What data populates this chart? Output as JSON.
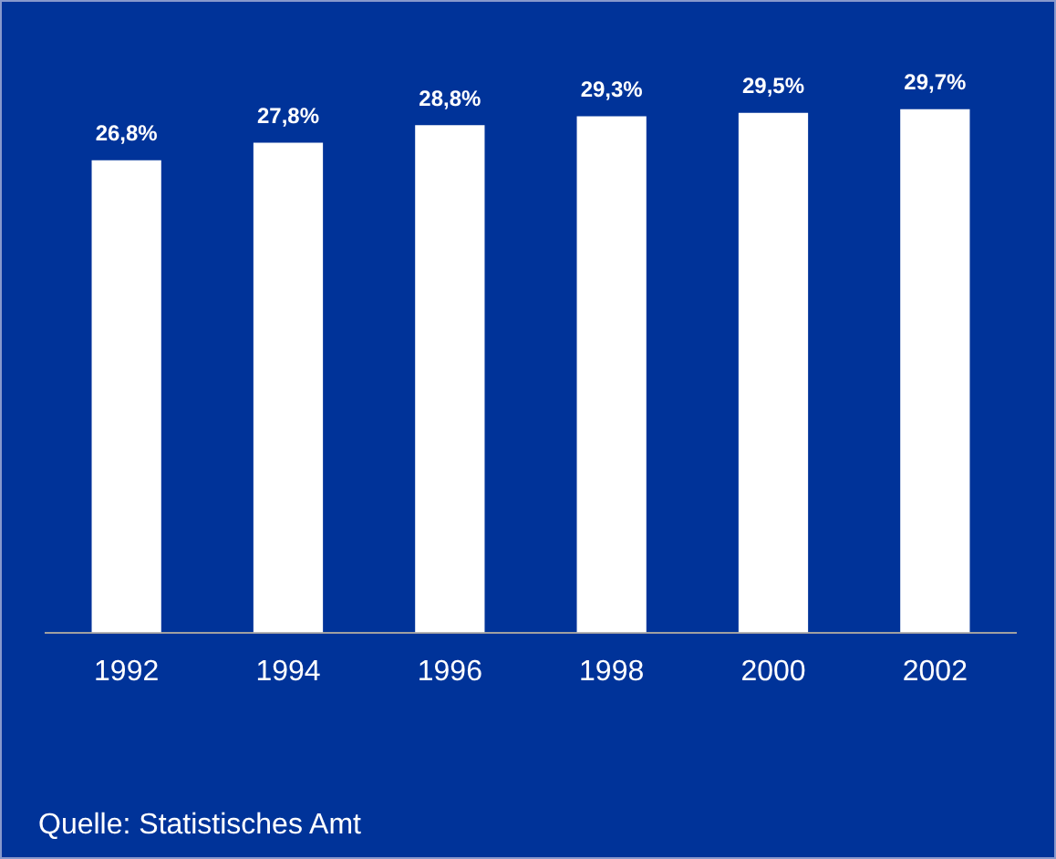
{
  "chart_data": {
    "type": "bar",
    "categories": [
      "1992",
      "1994",
      "1996",
      "1998",
      "2000",
      "2002"
    ],
    "values": [
      26.8,
      27.8,
      28.8,
      29.3,
      29.5,
      29.7
    ],
    "value_labels": [
      "26,8%",
      "27,8%",
      "28,8%",
      "29,3%",
      "29,5%",
      "29,7%"
    ],
    "color": "#ffffff",
    "tick_labels": "x",
    "grid": false,
    "legend": false,
    "annotations": [
      "Quelle: Statistisches Amt"
    ]
  }
}
